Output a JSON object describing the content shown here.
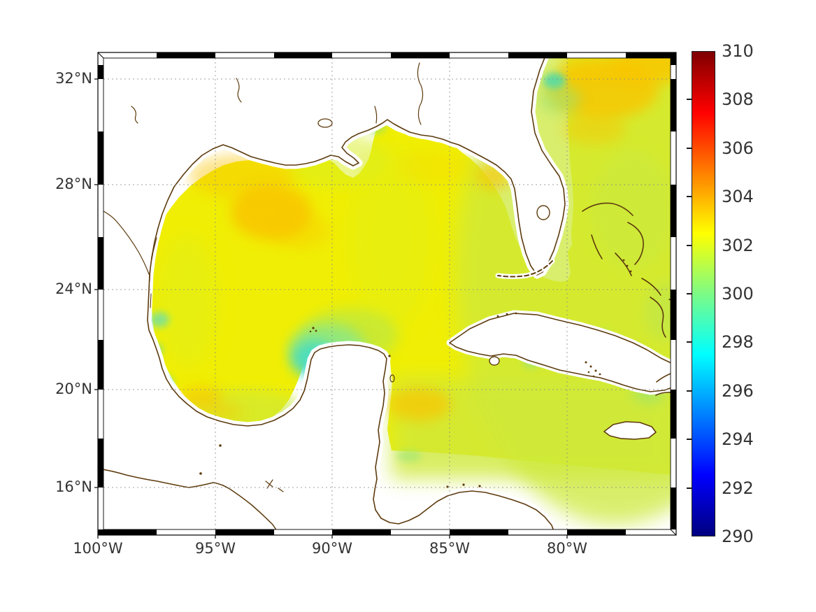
{
  "figure": {
    "kind": "sea-surface-temperature map with colorbar",
    "title": ""
  },
  "axes": {
    "lat": {
      "ticks": [
        {
          "value": 32,
          "label": "32°N"
        },
        {
          "value": 28,
          "label": "28°N"
        },
        {
          "value": 24,
          "label": "24°N"
        },
        {
          "value": 20,
          "label": "20°N"
        },
        {
          "value": 16,
          "label": "16°N"
        }
      ]
    },
    "lon": {
      "ticks": [
        {
          "value": 100,
          "label": "100°W"
        },
        {
          "value": 95,
          "label": "95°W"
        },
        {
          "value": 90,
          "label": "90°W"
        },
        {
          "value": 85,
          "label": "85°W"
        },
        {
          "value": 80,
          "label": "80°W"
        }
      ]
    }
  },
  "colorbar": {
    "min": 290,
    "max": 310,
    "colormap": "jet",
    "tick_labels": [
      "310",
      "308",
      "306",
      "304",
      "302",
      "300",
      "298",
      "296",
      "294",
      "292",
      "290"
    ],
    "tick_values": [
      310,
      308,
      306,
      304,
      302,
      300,
      298,
      296,
      294,
      292,
      290
    ],
    "gradient_stops": [
      {
        "value": 290,
        "color": "#000080"
      },
      {
        "value": 292.5,
        "color": "#0000ff"
      },
      {
        "value": 297.5,
        "color": "#00ffff"
      },
      {
        "value": 300,
        "color": "#7dfb85"
      },
      {
        "value": 302.5,
        "color": "#ffff00"
      },
      {
        "value": 307.5,
        "color": "#ff0000"
      },
      {
        "value": 310,
        "color": "#7f0000"
      }
    ]
  },
  "colors": {
    "coastline": "#5d3b0e",
    "field_base": "#f0ee04",
    "warm_patch": "#f9c504",
    "cool_patch": "#46dcc2",
    "green_tint": "#cde93c",
    "gridline": "#8a8a8a",
    "frame": "#000000",
    "label": "#333333",
    "background": "#ffffff"
  },
  "chart_data": {
    "type": "heatmap",
    "title": "",
    "xlabel": "",
    "ylabel": "",
    "x_axis": {
      "ticks_degW": [
        100,
        95,
        90,
        85,
        80
      ],
      "range_degW": [
        100,
        76
      ]
    },
    "y_axis": {
      "ticks_degN": [
        32,
        28,
        24,
        20,
        16
      ],
      "range_degN": [
        13,
        33
      ]
    },
    "colorbar": {
      "range": [
        290,
        310
      ],
      "tick_step": 2,
      "colormap": "jet"
    },
    "grid": "dotted, at labeled ticks",
    "legend_position": "right colorbar",
    "region_values": [
      {
        "region": "gulf_of_mexico_interior",
        "approx_value": 302
      },
      {
        "region": "northwest_gulf_warm_patch",
        "approx_value": 303.5
      },
      {
        "region": "big_bend_florida_warm_patch",
        "approx_value": 303
      },
      {
        "region": "atlantic_northeast_corner",
        "approx_value": 303
      },
      {
        "region": "florida_straits",
        "approx_value": 301.5
      },
      {
        "region": "caribbean_sea",
        "approx_value": 301
      },
      {
        "region": "west_caribbean_warm_patch",
        "approx_value": 302.5
      },
      {
        "region": "yucatan_shelf_cool_patch",
        "approx_value": 298.5
      },
      {
        "region": "bay_of_campeche_cool_spots",
        "approx_value": 299.5
      },
      {
        "region": "northeast_florida_coast_cool_spot",
        "approx_value": 299
      },
      {
        "region": "cuba_shelf_cool_spots",
        "approx_value": 300
      }
    ],
    "no_data": [
      "land areas (white)",
      "band south of ~17.5N in Caribbean (white diagonal cutoff)"
    ]
  }
}
